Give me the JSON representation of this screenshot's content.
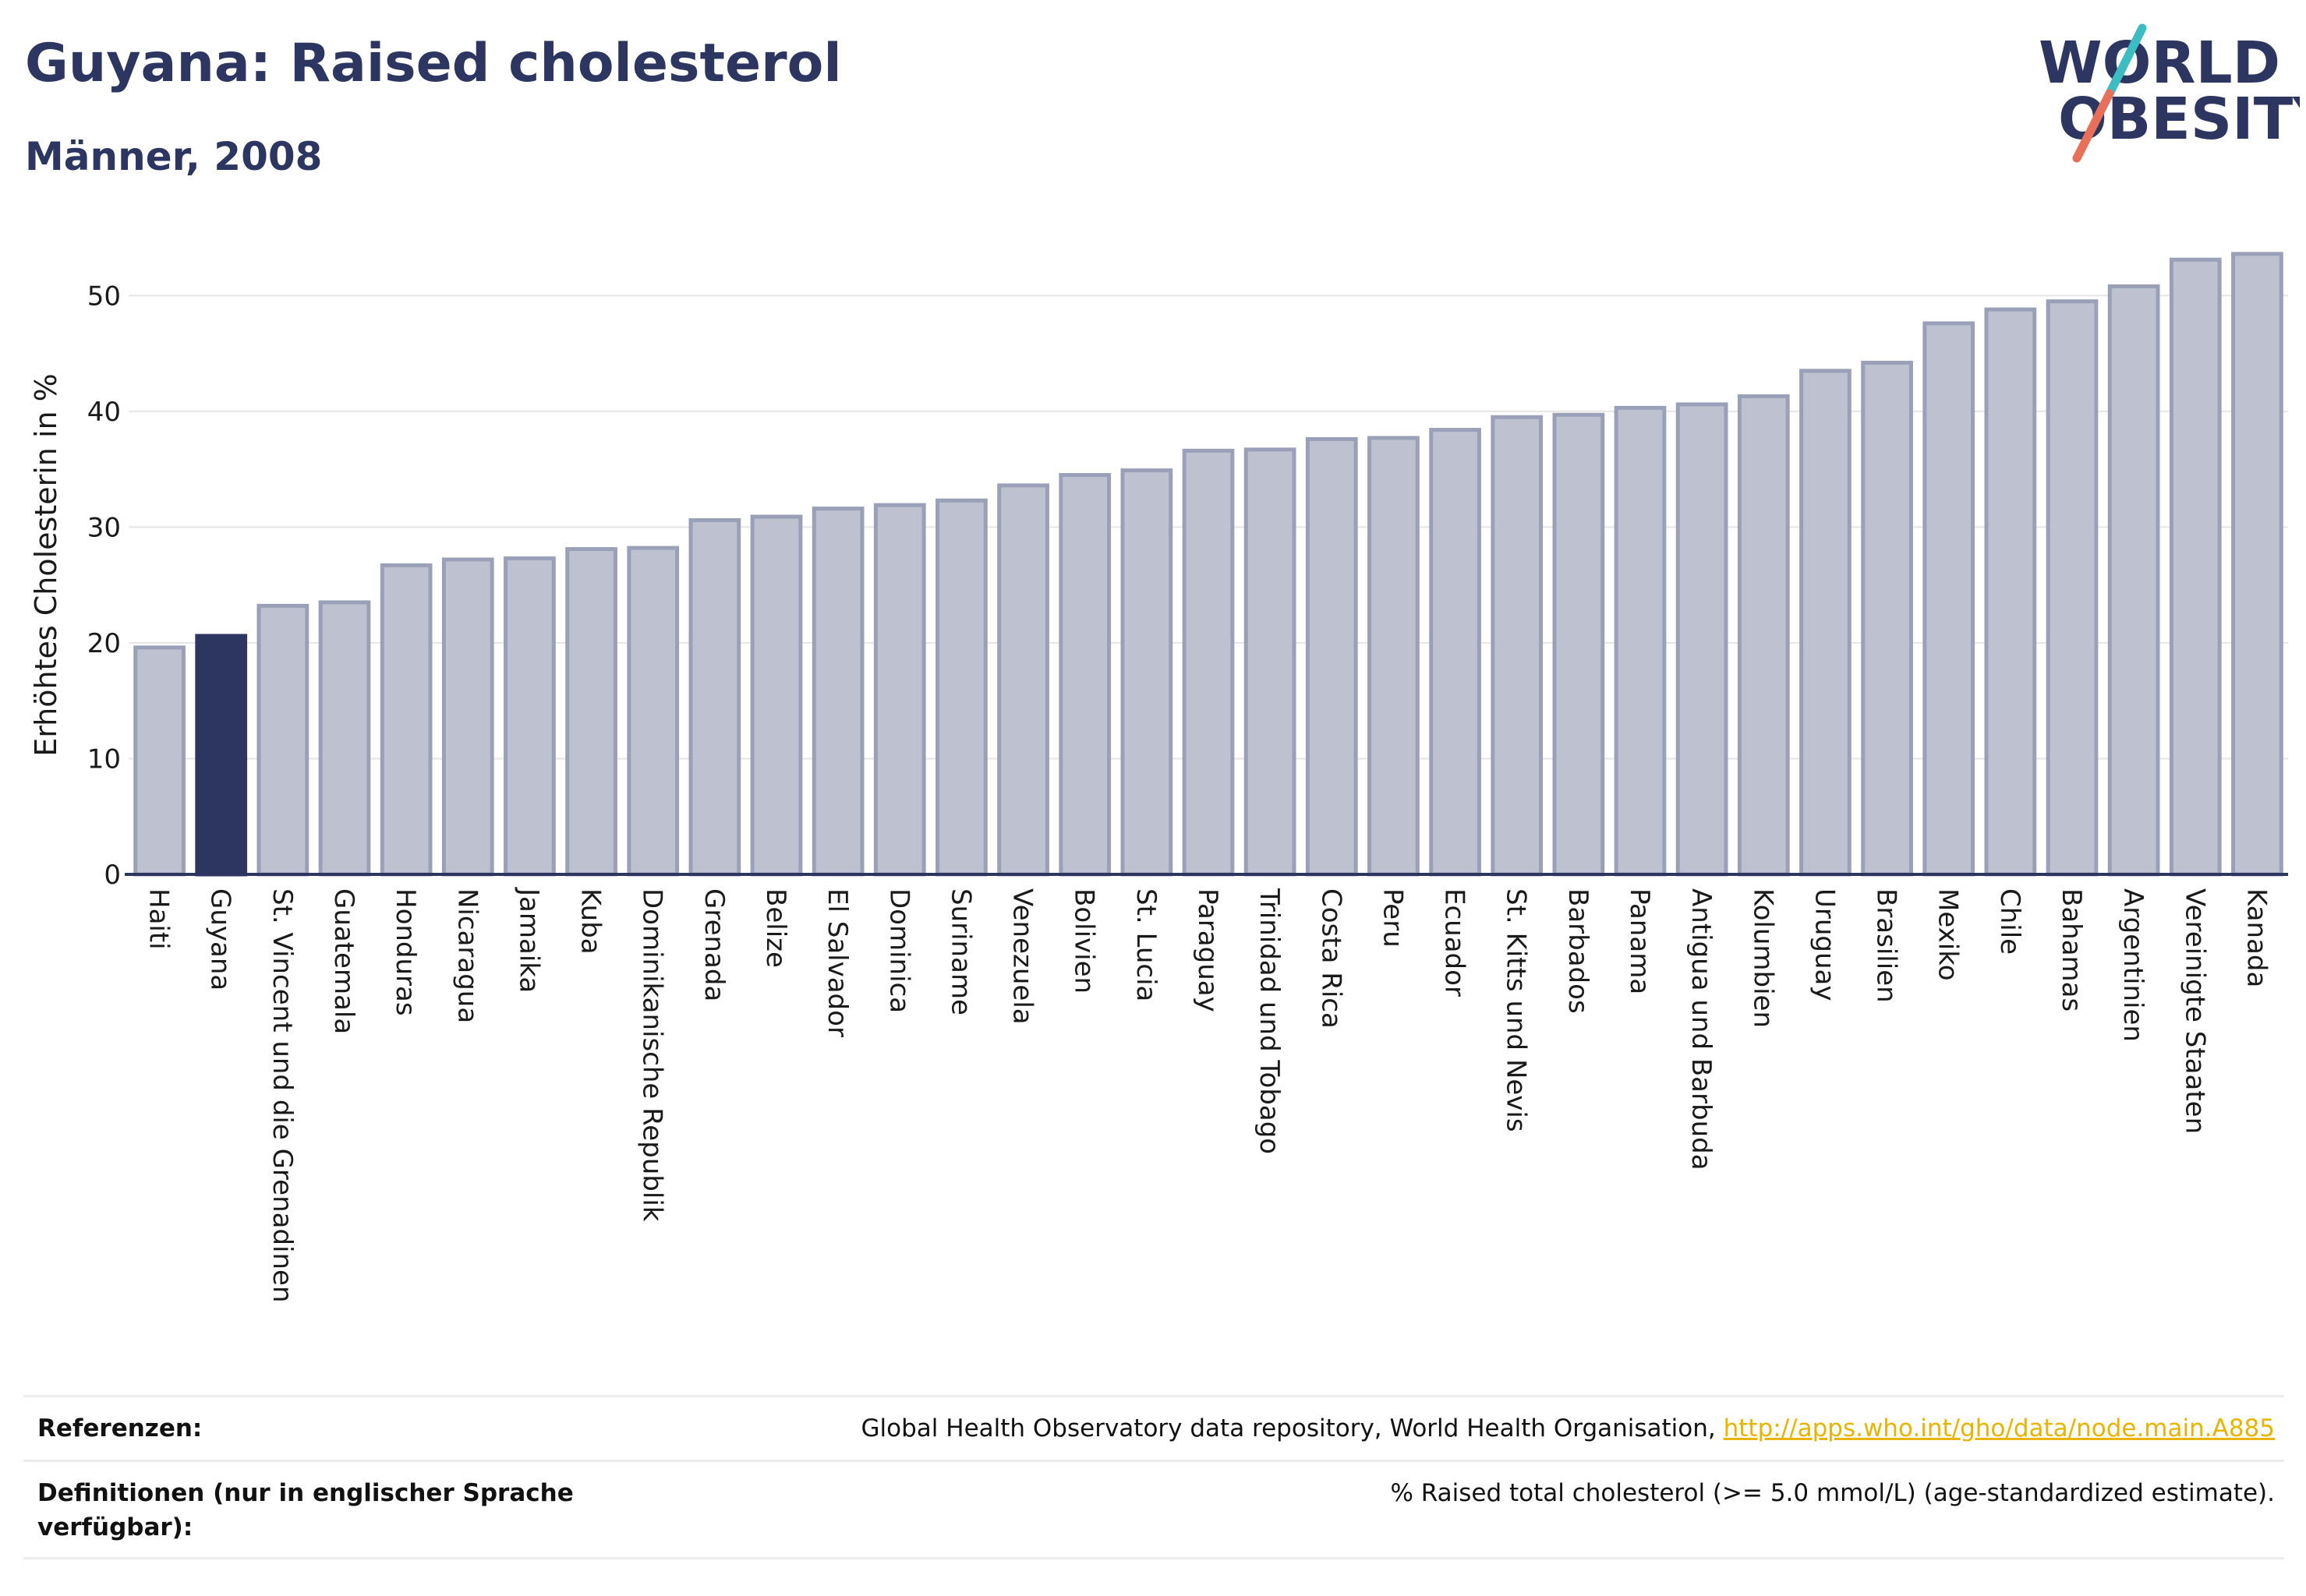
{
  "header": {
    "title": "Guyana: Raised cholesterol",
    "subtitle": "Männer, 2008"
  },
  "logo": {
    "line1": "WORLD",
    "line2": "OBESITY",
    "colors": {
      "text": "#2c3661",
      "teal": "#3cbcc3",
      "coral": "#e8705a"
    }
  },
  "chart_data": {
    "type": "bar",
    "ylabel": "Erhöhtes Cholesterin in %",
    "xlabel": "",
    "ylim": [
      0,
      55
    ],
    "yticks": [
      0,
      10,
      20,
      30,
      40,
      50
    ],
    "grid": true,
    "highlight": "Guyana",
    "colors": {
      "bar": "#bec1cf",
      "bar_border": "#9aa0b8",
      "highlight": "#2c3661"
    },
    "categories": [
      "Haiti",
      "Guyana",
      "St. Vincent und die Grenadinen",
      "Guatemala",
      "Honduras",
      "Nicaragua",
      "Jamaika",
      "Kuba",
      "Dominikanische Republik",
      "Grenada",
      "Belize",
      "El Salvador",
      "Dominica",
      "Suriname",
      "Venezuela",
      "Bolivien",
      "St. Lucia",
      "Paraguay",
      "Trinidad und Tobago",
      "Costa Rica",
      "Peru",
      "Ecuador",
      "St. Kitts und Nevis",
      "Barbados",
      "Panama",
      "Antigua und Barbuda",
      "Kolumbien",
      "Uruguay",
      "Brasilien",
      "Mexiko",
      "Chile",
      "Bahamas",
      "Argentinien",
      "Vereinigte Staaten",
      "Kanada"
    ],
    "values": [
      19.6,
      20.6,
      23.2,
      23.5,
      26.7,
      27.2,
      27.3,
      28.1,
      28.2,
      30.6,
      30.9,
      31.6,
      31.9,
      32.3,
      33.6,
      34.5,
      34.9,
      36.6,
      36.7,
      37.6,
      37.7,
      38.4,
      39.5,
      39.7,
      40.3,
      40.6,
      41.3,
      43.5,
      44.2,
      47.6,
      48.8,
      49.5,
      50.8,
      53.1,
      53.6
    ]
  },
  "footer": {
    "references_label": "Referenzen:",
    "references_text": "Global Health Observatory data repository, World Health Organisation,",
    "references_link": "http://apps.who.int/gho/data/node.main.A885",
    "definitions_label": "Definitionen (nur in englischer Sprache verfügbar):",
    "definitions_text": "% Raised total cholesterol (>= 5.0 mmol/L) (age-standardized estimate)."
  }
}
